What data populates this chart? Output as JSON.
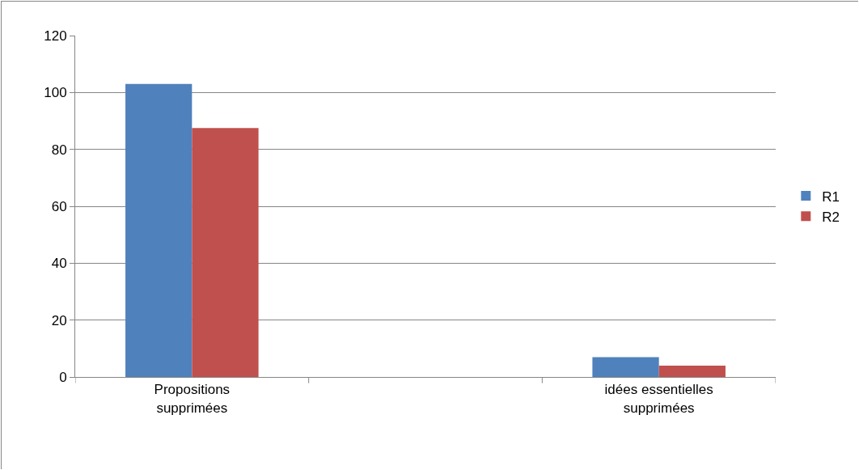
{
  "chart_data": {
    "type": "bar",
    "categories": [
      "Propositions supprimées",
      null,
      "idées essentielles supprimées"
    ],
    "series": [
      {
        "name": "R1",
        "color": "#4f81bd",
        "values": [
          103,
          null,
          7
        ]
      },
      {
        "name": "R2",
        "color": "#c0504d",
        "values": [
          87.5,
          null,
          4
        ]
      }
    ],
    "ylim": [
      0,
      120
    ],
    "yticks": [
      0,
      20,
      40,
      60,
      80,
      100,
      120
    ],
    "grid": "y",
    "legend": "right"
  }
}
